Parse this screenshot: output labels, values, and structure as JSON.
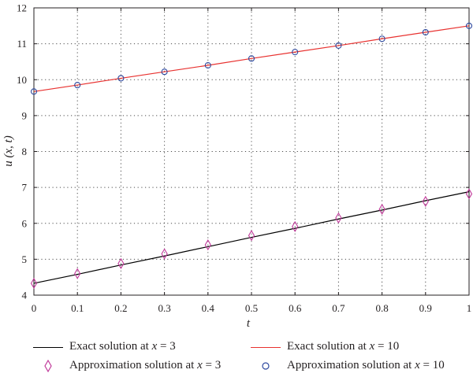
{
  "chart_data": {
    "type": "line",
    "title": "",
    "xlabel": "t",
    "ylabel": "u (x, t)",
    "xlim": [
      0,
      1
    ],
    "ylim": [
      4,
      12
    ],
    "x_ticks": [
      "0",
      "0.1",
      "0.2",
      "0.3",
      "0.4",
      "0.5",
      "0.6",
      "0.7",
      "0.8",
      "0.9",
      "1"
    ],
    "y_ticks": [
      "4",
      "5",
      "6",
      "7",
      "8",
      "9",
      "10",
      "11",
      "12"
    ],
    "grid": true,
    "legend_position": "bottom",
    "x": [
      0,
      0.1,
      0.2,
      0.3,
      0.4,
      0.5,
      0.6,
      0.7,
      0.8,
      0.9,
      1
    ],
    "series": [
      {
        "name": "Exact solution at x = 3",
        "kind": "line",
        "color": "#000000",
        "values": [
          4.33,
          4.58,
          4.84,
          5.09,
          5.35,
          5.61,
          5.86,
          6.12,
          6.37,
          6.63,
          6.88
        ]
      },
      {
        "name": "Exact solution at x = 10",
        "kind": "line",
        "color": "#e8312f",
        "values": [
          9.67,
          9.85,
          10.04,
          10.22,
          10.4,
          10.59,
          10.77,
          10.95,
          11.14,
          11.32,
          11.5
        ]
      },
      {
        "name": "Approximation solution at x = 3",
        "kind": "marker",
        "marker": "diamond",
        "color": "#c13b9b",
        "values": [
          4.33,
          4.6,
          4.88,
          5.15,
          5.4,
          5.66,
          5.91,
          6.15,
          6.39,
          6.61,
          6.82
        ]
      },
      {
        "name": "Approximation solution at x = 10",
        "kind": "marker",
        "marker": "circle",
        "color": "#2f4aa0",
        "values": [
          9.67,
          9.85,
          10.04,
          10.22,
          10.4,
          10.59,
          10.77,
          10.95,
          11.14,
          11.32,
          11.5
        ]
      }
    ]
  },
  "legend": {
    "items": [
      {
        "label": "Exact solution at ",
        "var": "x",
        "suffix": " = 3"
      },
      {
        "label": "Exact solution at ",
        "var": "x",
        "suffix": " = 10"
      },
      {
        "label": "Approximation solution at ",
        "var": "x",
        "suffix": " = 3"
      },
      {
        "label": "Approximation solution at ",
        "var": "x",
        "suffix": " = 10"
      }
    ]
  }
}
